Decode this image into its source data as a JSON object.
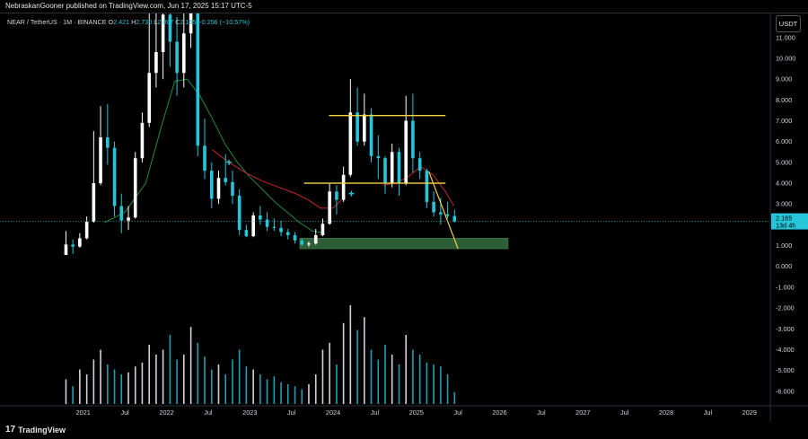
{
  "publisher_text": "NebraskanGooner published on TradingView.com, Jun 17, 2025 15:17 UTC-5",
  "legend": {
    "symbol": "NEAR / TetherUS · 1M · BINANCE",
    "o_label": "O",
    "o_val": "2.421",
    "h_label": "H",
    "h_val": "2.730",
    "l_label": "L",
    "l_val": "2.097",
    "c_label": "C",
    "c_val": "2.165",
    "change": "−0.256 (−10.57%)"
  },
  "currency_button": "USDT",
  "price_tag": {
    "value": "2.165",
    "countdown": "13d 4h"
  },
  "footer_brand": "TradingView",
  "footer_mark": "17",
  "colors": {
    "up": "#ffffff",
    "down": "#26c6da",
    "ma_green": "#1e8a3c",
    "ma_red": "#c62828",
    "yellow": "#f5d142",
    "zone": "#2e5e36",
    "axis_text": "#d1d4dc"
  },
  "chart_data": {
    "type": "candlestick",
    "symbol": "NEAR / TetherUS",
    "interval": "1M",
    "exchange": "BINANCE",
    "y_ticks": [
      "11.000",
      "10.000",
      "9.000",
      "8.000",
      "7.000",
      "6.000",
      "5.000",
      "4.000",
      "3.000",
      "2.000",
      "1.000",
      "0.000",
      "-1.000",
      "-2.000",
      "-3.000",
      "-4.000",
      "-5.000",
      "-6.000"
    ],
    "y_tick_values": [
      11,
      10,
      9,
      8,
      7,
      6,
      5,
      4,
      3,
      2,
      1,
      0,
      -1,
      -2,
      -3,
      -4,
      -5,
      -6
    ],
    "x_ticks": [
      {
        "label": "2021",
        "t": 2021.0
      },
      {
        "label": "Jul",
        "t": 2021.5
      },
      {
        "label": "2022",
        "t": 2022.0
      },
      {
        "label": "Jul",
        "t": 2022.5
      },
      {
        "label": "2023",
        "t": 2023.0
      },
      {
        "label": "Jul",
        "t": 2023.5
      },
      {
        "label": "2024",
        "t": 2024.0
      },
      {
        "label": "Jul",
        "t": 2024.5
      },
      {
        "label": "2025",
        "t": 2025.0
      },
      {
        "label": "Jul",
        "t": 2025.5
      },
      {
        "label": "2026",
        "t": 2026.0
      },
      {
        "label": "Jul",
        "t": 2026.5
      },
      {
        "label": "2027",
        "t": 2027.0
      },
      {
        "label": "Jul",
        "t": 2027.5
      },
      {
        "label": "2028",
        "t": 2028.0
      },
      {
        "label": "Jul",
        "t": 2028.5
      },
      {
        "label": "2029",
        "t": 2029.0
      }
    ],
    "x_range": [
      2020.0,
      2029.25
    ],
    "y_range": [
      -6.7,
      12.2
    ],
    "candles": [
      {
        "t": 2020.792,
        "o": 0.55,
        "h": 1.7,
        "l": 0.55,
        "c": 1.05
      },
      {
        "t": 2020.875,
        "o": 1.05,
        "h": 1.3,
        "l": 0.6,
        "c": 0.95
      },
      {
        "t": 2020.958,
        "o": 0.95,
        "h": 1.6,
        "l": 0.9,
        "c": 1.35
      },
      {
        "t": 2021.042,
        "o": 1.35,
        "h": 2.4,
        "l": 1.3,
        "c": 2.15
      },
      {
        "t": 2021.125,
        "o": 2.15,
        "h": 6.5,
        "l": 2.1,
        "c": 4.0
      },
      {
        "t": 2021.208,
        "o": 4.0,
        "h": 7.7,
        "l": 3.9,
        "c": 6.2
      },
      {
        "t": 2021.292,
        "o": 6.2,
        "h": 7.8,
        "l": 4.9,
        "c": 5.7
      },
      {
        "t": 2021.375,
        "o": 5.7,
        "h": 6.0,
        "l": 2.4,
        "c": 2.9
      },
      {
        "t": 2021.458,
        "o": 2.9,
        "h": 3.5,
        "l": 1.6,
        "c": 2.2
      },
      {
        "t": 2021.542,
        "o": 2.2,
        "h": 2.9,
        "l": 1.75,
        "c": 2.35
      },
      {
        "t": 2021.625,
        "o": 2.35,
        "h": 5.5,
        "l": 2.3,
        "c": 5.2
      },
      {
        "t": 2021.708,
        "o": 5.2,
        "h": 7.4,
        "l": 5.0,
        "c": 6.9
      },
      {
        "t": 2021.792,
        "o": 6.9,
        "h": 13.0,
        "l": 6.7,
        "c": 9.3
      },
      {
        "t": 2021.875,
        "o": 9.3,
        "h": 12.7,
        "l": 8.6,
        "c": 10.3
      },
      {
        "t": 2021.958,
        "o": 10.3,
        "h": 12.9,
        "l": 9.0,
        "c": 12.1
      },
      {
        "t": 2022.042,
        "o": 12.1,
        "h": 14.0,
        "l": 9.6,
        "c": 10.8
      },
      {
        "t": 2022.125,
        "o": 10.8,
        "h": 12.0,
        "l": 8.2,
        "c": 9.3
      },
      {
        "t": 2022.208,
        "o": 9.3,
        "h": 13.5,
        "l": 8.6,
        "c": 11.2
      },
      {
        "t": 2022.292,
        "o": 11.2,
        "h": 19.0,
        "l": 10.5,
        "c": 16.5
      },
      {
        "t": 2022.375,
        "o": 16.5,
        "h": 16.7,
        "l": 5.3,
        "c": 5.8
      },
      {
        "t": 2022.458,
        "o": 5.8,
        "h": 7.1,
        "l": 4.2,
        "c": 4.6
      },
      {
        "t": 2022.542,
        "o": 4.6,
        "h": 5.0,
        "l": 2.8,
        "c": 3.25
      },
      {
        "t": 2022.625,
        "o": 3.25,
        "h": 4.6,
        "l": 3.0,
        "c": 4.25
      },
      {
        "t": 2022.708,
        "o": 4.25,
        "h": 5.4,
        "l": 3.9,
        "c": 4.05
      },
      {
        "t": 2022.792,
        "o": 4.05,
        "h": 4.6,
        "l": 3.0,
        "c": 3.4
      },
      {
        "t": 2022.875,
        "o": 3.4,
        "h": 3.7,
        "l": 1.5,
        "c": 1.75
      },
      {
        "t": 2022.958,
        "o": 1.75,
        "h": 2.0,
        "l": 1.4,
        "c": 1.45
      },
      {
        "t": 2023.042,
        "o": 1.45,
        "h": 2.6,
        "l": 1.4,
        "c": 2.45
      },
      {
        "t": 2023.125,
        "o": 2.45,
        "h": 2.9,
        "l": 2.0,
        "c": 2.25
      },
      {
        "t": 2023.208,
        "o": 2.25,
        "h": 2.6,
        "l": 1.7,
        "c": 1.9
      },
      {
        "t": 2023.292,
        "o": 1.9,
        "h": 2.3,
        "l": 1.7,
        "c": 1.85
      },
      {
        "t": 2023.375,
        "o": 1.85,
        "h": 2.2,
        "l": 1.45,
        "c": 1.65
      },
      {
        "t": 2023.458,
        "o": 1.65,
        "h": 1.8,
        "l": 1.3,
        "c": 1.5
      },
      {
        "t": 2023.542,
        "o": 1.5,
        "h": 1.65,
        "l": 1.1,
        "c": 1.25
      },
      {
        "t": 2023.625,
        "o": 1.25,
        "h": 1.35,
        "l": 1.0,
        "c": 1.05
      },
      {
        "t": 2023.708,
        "o": 1.05,
        "h": 1.2,
        "l": 0.95,
        "c": 1.1
      },
      {
        "t": 2023.792,
        "o": 1.1,
        "h": 1.8,
        "l": 1.05,
        "c": 1.5
      },
      {
        "t": 2023.875,
        "o": 1.5,
        "h": 2.3,
        "l": 1.45,
        "c": 2.05
      },
      {
        "t": 2023.958,
        "o": 2.05,
        "h": 4.0,
        "l": 2.0,
        "c": 3.6
      },
      {
        "t": 2024.042,
        "o": 3.6,
        "h": 3.9,
        "l": 2.5,
        "c": 3.2
      },
      {
        "t": 2024.125,
        "o": 3.2,
        "h": 4.8,
        "l": 3.1,
        "c": 4.4
      },
      {
        "t": 2024.208,
        "o": 4.4,
        "h": 9.0,
        "l": 4.3,
        "c": 7.4
      },
      {
        "t": 2024.292,
        "o": 7.4,
        "h": 8.6,
        "l": 5.8,
        "c": 6.0
      },
      {
        "t": 2024.375,
        "o": 6.0,
        "h": 8.3,
        "l": 5.8,
        "c": 7.3
      },
      {
        "t": 2024.458,
        "o": 7.3,
        "h": 7.6,
        "l": 5.0,
        "c": 5.3
      },
      {
        "t": 2024.542,
        "o": 5.3,
        "h": 6.3,
        "l": 4.2,
        "c": 5.2
      },
      {
        "t": 2024.625,
        "o": 5.2,
        "h": 5.3,
        "l": 3.5,
        "c": 4.0
      },
      {
        "t": 2024.708,
        "o": 4.0,
        "h": 5.9,
        "l": 3.8,
        "c": 5.5
      },
      {
        "t": 2024.792,
        "o": 5.5,
        "h": 5.7,
        "l": 3.4,
        "c": 4.0
      },
      {
        "t": 2024.875,
        "o": 4.0,
        "h": 8.2,
        "l": 3.9,
        "c": 7.0
      },
      {
        "t": 2024.958,
        "o": 7.0,
        "h": 8.3,
        "l": 4.5,
        "c": 5.2
      },
      {
        "t": 2025.042,
        "o": 5.2,
        "h": 5.5,
        "l": 4.2,
        "c": 4.6
      },
      {
        "t": 2025.125,
        "o": 4.6,
        "h": 4.7,
        "l": 2.8,
        "c": 3.1
      },
      {
        "t": 2025.208,
        "o": 3.1,
        "h": 3.6,
        "l": 2.4,
        "c": 2.6
      },
      {
        "t": 2025.292,
        "o": 2.6,
        "h": 3.3,
        "l": 2.0,
        "c": 2.5
      },
      {
        "t": 2025.375,
        "o": 2.5,
        "h": 3.1,
        "l": 2.3,
        "c": 2.42
      },
      {
        "t": 2025.458,
        "o": 2.42,
        "h": 2.73,
        "l": 2.097,
        "c": 2.165
      }
    ],
    "volume_heights": [
      0.25,
      0.18,
      0.35,
      0.3,
      0.45,
      0.55,
      0.4,
      0.35,
      0.3,
      0.32,
      0.38,
      0.42,
      0.6,
      0.5,
      0.55,
      0.7,
      0.45,
      0.5,
      0.78,
      0.62,
      0.48,
      0.35,
      0.4,
      0.3,
      0.45,
      0.55,
      0.38,
      0.35,
      0.3,
      0.25,
      0.28,
      0.22,
      0.2,
      0.18,
      0.15,
      0.2,
      0.3,
      0.55,
      0.62,
      0.4,
      0.82,
      1.0,
      0.75,
      0.88,
      0.55,
      0.45,
      0.6,
      0.5,
      0.4,
      0.7,
      0.55,
      0.5,
      0.42,
      0.4,
      0.38,
      0.3,
      0.12
    ],
    "ma_green": [
      [
        2021.25,
        2.1
      ],
      [
        2021.5,
        2.6
      ],
      [
        2021.75,
        4.0
      ],
      [
        2021.95,
        6.9
      ],
      [
        2022.1,
        8.9
      ],
      [
        2022.25,
        9.0
      ],
      [
        2022.4,
        8.2
      ],
      [
        2022.55,
        7.1
      ],
      [
        2022.7,
        5.9
      ],
      [
        2022.85,
        5.0
      ],
      [
        2023.0,
        4.3
      ],
      [
        2023.15,
        3.7
      ],
      [
        2023.3,
        3.1
      ],
      [
        2023.45,
        2.6
      ],
      [
        2023.6,
        2.1
      ],
      [
        2023.75,
        1.7
      ],
      [
        2023.9,
        1.6
      ]
    ],
    "ma_red": [
      [
        2022.55,
        5.6
      ],
      [
        2022.75,
        5.0
      ],
      [
        2022.95,
        4.5
      ],
      [
        2023.15,
        4.1
      ],
      [
        2023.35,
        3.8
      ],
      [
        2023.55,
        3.5
      ],
      [
        2023.7,
        3.2
      ],
      [
        2023.85,
        2.8
      ],
      [
        2024.0,
        2.8
      ],
      [
        2024.1,
        3.2
      ]
    ],
    "ma_recent": [
      [
        2024.6,
        3.9
      ],
      [
        2024.75,
        4.0
      ],
      [
        2024.9,
        4.3
      ],
      [
        2025.05,
        4.8
      ],
      [
        2025.2,
        4.4
      ],
      [
        2025.35,
        3.6
      ],
      [
        2025.45,
        2.9
      ]
    ],
    "resistance_line": {
      "y": 7.25,
      "t1": 2023.95,
      "t2": 2025.35
    },
    "mid_line": {
      "y": 4.0,
      "t1": 2023.65,
      "t2": 2025.35
    },
    "support_zone": {
      "y1": 0.85,
      "y2": 1.35,
      "t1": 2023.6,
      "t2": 2026.1
    },
    "trend_line": {
      "t1": 2025.15,
      "y1": 4.55,
      "t2": 2025.5,
      "y2": 0.85
    },
    "markers": [
      {
        "t": 2022.75,
        "y": 5.0,
        "color": "#26c6da"
      },
      {
        "t": 2024.22,
        "y": 3.5,
        "color": "#26c6da"
      }
    ]
  }
}
